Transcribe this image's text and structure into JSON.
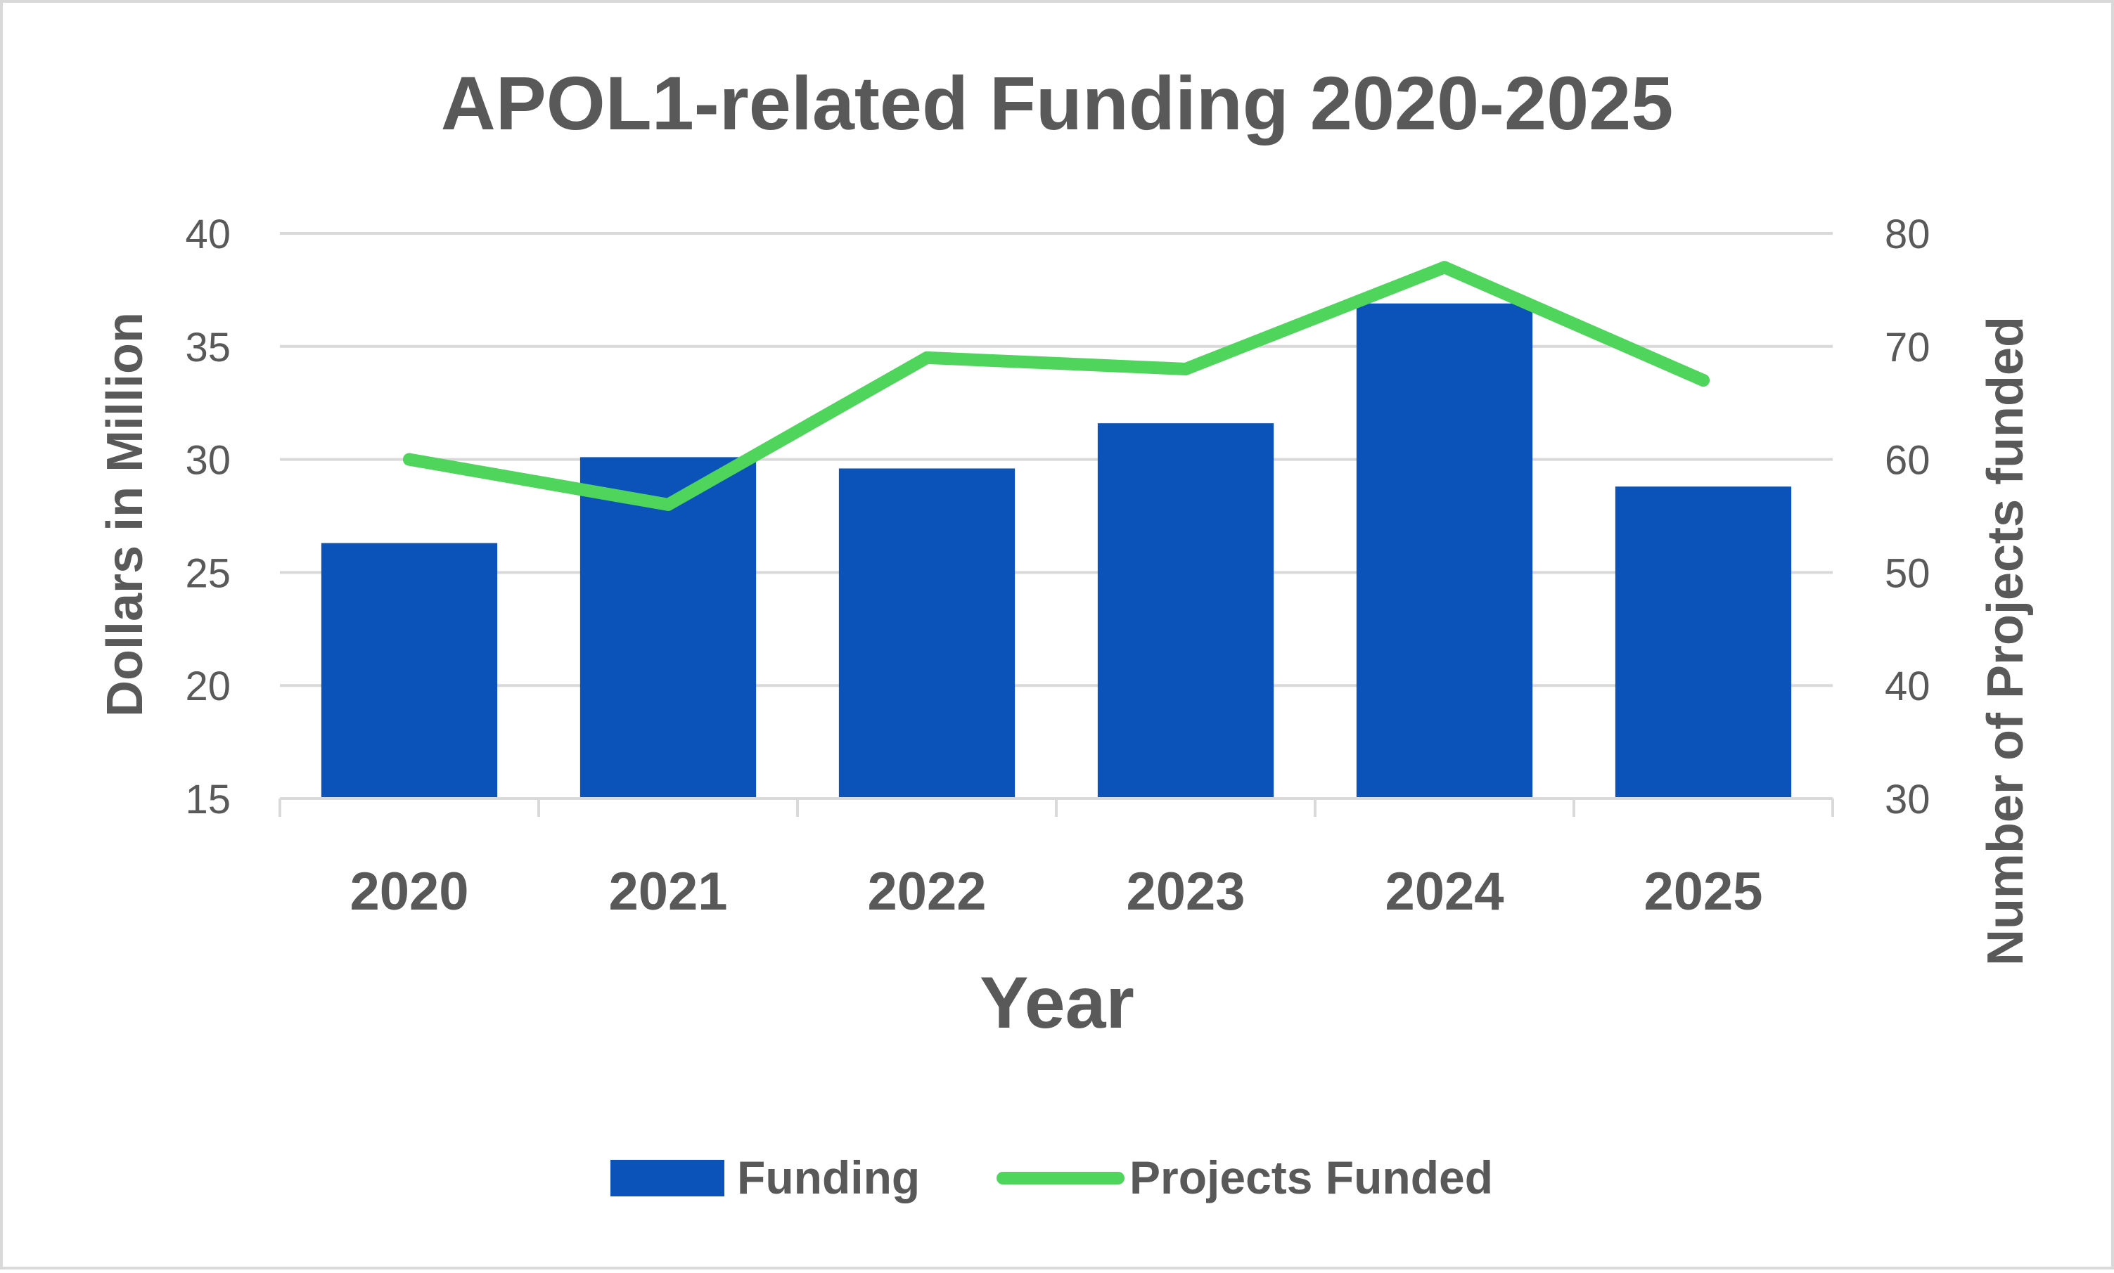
{
  "chart_data": {
    "type": "bar",
    "title": "APOL1-related Funding 2020-2025",
    "xlabel": "Year",
    "ylabel": "Dollars in Million",
    "y2label": "Number of Projects funded",
    "categories": [
      "2020",
      "2021",
      "2022",
      "2023",
      "2024",
      "2025"
    ],
    "ylim": [
      15,
      40
    ],
    "y_ticks": [
      15,
      20,
      25,
      30,
      35,
      40
    ],
    "y2lim": [
      30,
      80
    ],
    "y2_ticks": [
      30,
      40,
      50,
      60,
      70,
      80
    ],
    "series": [
      {
        "name": "Funding",
        "type": "bar",
        "axis": "left",
        "color": "#0b53b8",
        "values": [
          26.3,
          30.1,
          29.6,
          31.6,
          36.9,
          28.8
        ]
      },
      {
        "name": "Projects Funded",
        "type": "line",
        "axis": "right",
        "color": "#4fd45c",
        "values": [
          60,
          56,
          69,
          68,
          77,
          67
        ]
      }
    ],
    "grid": true,
    "legend_position": "bottom"
  }
}
